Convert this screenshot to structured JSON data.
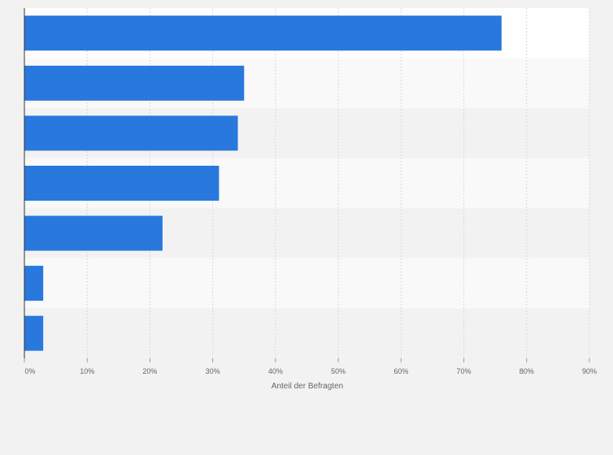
{
  "chart_data": {
    "type": "bar",
    "orientation": "horizontal",
    "categories": [
      "",
      "",
      "",
      "",
      "",
      "",
      ""
    ],
    "values": [
      76,
      35,
      34,
      31,
      22,
      3,
      3
    ],
    "xlabel": "Anteil der Befragten",
    "ylabel": "",
    "xlim": [
      0,
      90
    ],
    "x_ticks": [
      {
        "value": 0,
        "label": "0%"
      },
      {
        "value": 10,
        "label": "10%"
      },
      {
        "value": 20,
        "label": "20%"
      },
      {
        "value": 30,
        "label": "30%"
      },
      {
        "value": 40,
        "label": "40%"
      },
      {
        "value": 50,
        "label": "50%"
      },
      {
        "value": 60,
        "label": "60%"
      },
      {
        "value": 70,
        "label": "70%"
      },
      {
        "value": 80,
        "label": "80%"
      },
      {
        "value": 90,
        "label": "90%"
      }
    ],
    "grid": true,
    "colors": {
      "bar": "#2878de",
      "band_light": "#f9f9f9",
      "band_dark": "#f2f2f2",
      "grid": "#d9d9d9",
      "axis": "#333333",
      "tick_text": "#666666",
      "page_background": "#f2f2f2",
      "plot_background": "#ffffff"
    }
  }
}
